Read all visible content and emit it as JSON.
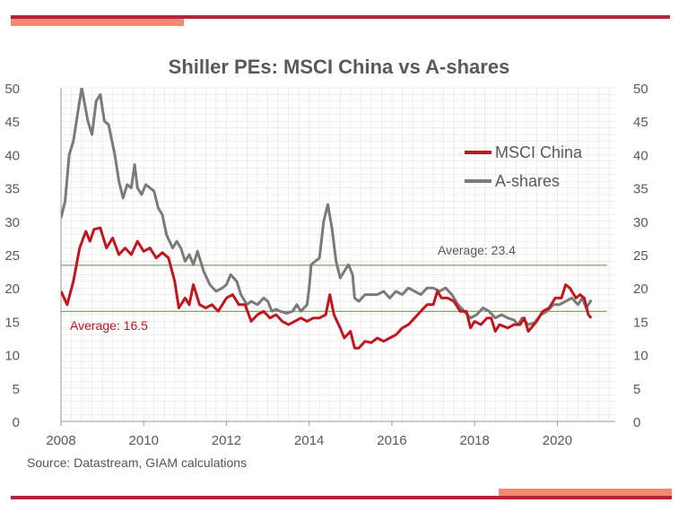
{
  "colors": {
    "accent_dark": "#b3243b",
    "accent_light": "#f08a73",
    "msci": "#c0161f",
    "ashares": "#7a7a7a",
    "average_line": "#5f8a4a",
    "grid": "#e2e2e2"
  },
  "source": "Source: Datastream, GIAM calculations",
  "chart_data": {
    "type": "line",
    "title": "Shiller PEs: MSCI China vs A-shares",
    "xlabel": "",
    "ylabel": "",
    "xlim": [
      2008,
      2021.4
    ],
    "ylim": [
      0,
      50
    ],
    "x_ticks": [
      "2008",
      "2010",
      "2012",
      "2014",
      "2016",
      "2018",
      "2020"
    ],
    "y_ticks": [
      "0",
      "5",
      "10",
      "15",
      "20",
      "25",
      "30",
      "35",
      "40",
      "45",
      "50"
    ],
    "grid": true,
    "legend_position": "top-right",
    "averages": [
      {
        "label": "Average: 23.4",
        "value": 23.4
      },
      {
        "label": "Average: 16.5",
        "value": 16.5
      }
    ],
    "series": [
      {
        "name": "MSCI China",
        "points": [
          [
            2008.0,
            19.5
          ],
          [
            2008.15,
            17.5
          ],
          [
            2008.3,
            21
          ],
          [
            2008.45,
            26
          ],
          [
            2008.6,
            28.5
          ],
          [
            2008.7,
            27
          ],
          [
            2008.8,
            28.8
          ],
          [
            2008.95,
            29
          ],
          [
            2009.1,
            26
          ],
          [
            2009.25,
            27.5
          ],
          [
            2009.4,
            25
          ],
          [
            2009.55,
            26
          ],
          [
            2009.7,
            25
          ],
          [
            2009.85,
            27
          ],
          [
            2010.0,
            25.5
          ],
          [
            2010.15,
            26
          ],
          [
            2010.3,
            24.5
          ],
          [
            2010.45,
            25.3
          ],
          [
            2010.6,
            24.5
          ],
          [
            2010.75,
            21
          ],
          [
            2010.85,
            17
          ],
          [
            2011.0,
            18.5
          ],
          [
            2011.1,
            17.5
          ],
          [
            2011.2,
            20.5
          ],
          [
            2011.35,
            17.5
          ],
          [
            2011.5,
            17
          ],
          [
            2011.65,
            17.5
          ],
          [
            2011.8,
            16.5
          ],
          [
            2012.0,
            18.5
          ],
          [
            2012.15,
            19
          ],
          [
            2012.3,
            17.5
          ],
          [
            2012.45,
            17.5
          ],
          [
            2012.6,
            15
          ],
          [
            2012.75,
            16
          ],
          [
            2012.9,
            16.5
          ],
          [
            2013.05,
            15.5
          ],
          [
            2013.2,
            16
          ],
          [
            2013.35,
            15
          ],
          [
            2013.5,
            14.5
          ],
          [
            2013.65,
            15
          ],
          [
            2013.8,
            15.5
          ],
          [
            2013.95,
            15
          ],
          [
            2014.1,
            15.5
          ],
          [
            2014.25,
            15.5
          ],
          [
            2014.4,
            16
          ],
          [
            2014.5,
            19
          ],
          [
            2014.6,
            16
          ],
          [
            2014.75,
            14
          ],
          [
            2014.85,
            12.5
          ],
          [
            2015.0,
            13.5
          ],
          [
            2015.1,
            11
          ],
          [
            2015.2,
            11
          ],
          [
            2015.35,
            12
          ],
          [
            2015.5,
            11.8
          ],
          [
            2015.65,
            12.5
          ],
          [
            2015.8,
            12
          ],
          [
            2015.95,
            12.5
          ],
          [
            2016.1,
            13
          ],
          [
            2016.25,
            14
          ],
          [
            2016.4,
            14.5
          ],
          [
            2016.55,
            15.5
          ],
          [
            2016.7,
            16.5
          ],
          [
            2016.85,
            17.5
          ],
          [
            2017.0,
            17.5
          ],
          [
            2017.1,
            19.5
          ],
          [
            2017.2,
            18.5
          ],
          [
            2017.35,
            18.5
          ],
          [
            2017.5,
            18
          ],
          [
            2017.65,
            16.5
          ],
          [
            2017.8,
            16.5
          ],
          [
            2017.9,
            14
          ],
          [
            2018.0,
            15
          ],
          [
            2018.15,
            14.5
          ],
          [
            2018.3,
            15.5
          ],
          [
            2018.4,
            15.5
          ],
          [
            2018.5,
            13.5
          ],
          [
            2018.6,
            14.5
          ],
          [
            2018.8,
            14
          ],
          [
            2018.95,
            14.5
          ],
          [
            2019.1,
            14.5
          ],
          [
            2019.2,
            15.5
          ],
          [
            2019.3,
            13.5
          ],
          [
            2019.5,
            15
          ],
          [
            2019.65,
            16.5
          ],
          [
            2019.8,
            17
          ],
          [
            2019.95,
            18.5
          ],
          [
            2020.1,
            18.5
          ],
          [
            2020.2,
            20.5
          ],
          [
            2020.3,
            20
          ],
          [
            2020.45,
            18.5
          ],
          [
            2020.55,
            19
          ],
          [
            2020.65,
            18.5
          ],
          [
            2020.75,
            16
          ],
          [
            2020.82,
            15.5
          ]
        ]
      },
      {
        "name": "A-shares",
        "points": [
          [
            2008.0,
            30.5
          ],
          [
            2008.1,
            33
          ],
          [
            2008.2,
            40
          ],
          [
            2008.3,
            42
          ],
          [
            2008.4,
            46
          ],
          [
            2008.5,
            50
          ],
          [
            2008.65,
            45
          ],
          [
            2008.75,
            43
          ],
          [
            2008.85,
            48
          ],
          [
            2008.95,
            49
          ],
          [
            2009.05,
            45
          ],
          [
            2009.15,
            44.5
          ],
          [
            2009.3,
            40
          ],
          [
            2009.4,
            36
          ],
          [
            2009.5,
            33.5
          ],
          [
            2009.6,
            35.5
          ],
          [
            2009.7,
            35
          ],
          [
            2009.78,
            38.5
          ],
          [
            2009.85,
            35
          ],
          [
            2009.95,
            34
          ],
          [
            2010.05,
            35.5
          ],
          [
            2010.15,
            35
          ],
          [
            2010.25,
            34.5
          ],
          [
            2010.35,
            32
          ],
          [
            2010.45,
            31
          ],
          [
            2010.55,
            28
          ],
          [
            2010.7,
            26
          ],
          [
            2010.8,
            27
          ],
          [
            2010.9,
            26
          ],
          [
            2011.0,
            24
          ],
          [
            2011.1,
            25
          ],
          [
            2011.2,
            23.5
          ],
          [
            2011.3,
            25.5
          ],
          [
            2011.45,
            22.5
          ],
          [
            2011.6,
            20.5
          ],
          [
            2011.75,
            19.5
          ],
          [
            2011.9,
            20
          ],
          [
            2012.0,
            20.5
          ],
          [
            2012.1,
            22
          ],
          [
            2012.25,
            21
          ],
          [
            2012.35,
            19
          ],
          [
            2012.5,
            17.5
          ],
          [
            2012.6,
            18
          ],
          [
            2012.75,
            17.5
          ],
          [
            2012.9,
            18.5
          ],
          [
            2013.0,
            18
          ],
          [
            2013.1,
            16.5
          ],
          [
            2013.2,
            16.8
          ],
          [
            2013.3,
            16.5
          ],
          [
            2013.45,
            16.2
          ],
          [
            2013.6,
            16.5
          ],
          [
            2013.7,
            17.5
          ],
          [
            2013.8,
            16.5
          ],
          [
            2013.95,
            17.5
          ],
          [
            2014.0,
            20
          ],
          [
            2014.05,
            23.5
          ],
          [
            2014.15,
            24
          ],
          [
            2014.25,
            24.5
          ],
          [
            2014.35,
            30
          ],
          [
            2014.45,
            32.5
          ],
          [
            2014.55,
            29
          ],
          [
            2014.65,
            24
          ],
          [
            2014.75,
            21.5
          ],
          [
            2014.85,
            22.5
          ],
          [
            2014.95,
            23.5
          ],
          [
            2015.05,
            22
          ],
          [
            2015.1,
            18.5
          ],
          [
            2015.2,
            18
          ],
          [
            2015.35,
            19
          ],
          [
            2015.5,
            19
          ],
          [
            2015.65,
            19
          ],
          [
            2015.8,
            19.5
          ],
          [
            2015.95,
            18.5
          ],
          [
            2016.1,
            19.5
          ],
          [
            2016.25,
            19
          ],
          [
            2016.4,
            20
          ],
          [
            2016.55,
            19.5
          ],
          [
            2016.7,
            19
          ],
          [
            2016.85,
            20
          ],
          [
            2017.0,
            20
          ],
          [
            2017.15,
            19.5
          ],
          [
            2017.3,
            20
          ],
          [
            2017.45,
            19
          ],
          [
            2017.6,
            17.5
          ],
          [
            2017.75,
            16.5
          ],
          [
            2017.9,
            15.5
          ],
          [
            2018.05,
            16
          ],
          [
            2018.2,
            17
          ],
          [
            2018.35,
            16.5
          ],
          [
            2018.5,
            15.5
          ],
          [
            2018.65,
            16
          ],
          [
            2018.8,
            15.5
          ],
          [
            2018.95,
            15.2
          ],
          [
            2019.05,
            14.5
          ],
          [
            2019.15,
            15.5
          ],
          [
            2019.3,
            14.5
          ],
          [
            2019.45,
            14.8
          ],
          [
            2019.6,
            16
          ],
          [
            2019.75,
            16.5
          ],
          [
            2019.9,
            17.5
          ],
          [
            2020.05,
            17.5
          ],
          [
            2020.2,
            18
          ],
          [
            2020.35,
            18.5
          ],
          [
            2020.5,
            17.5
          ],
          [
            2020.6,
            18.5
          ],
          [
            2020.7,
            17
          ],
          [
            2020.82,
            18.2
          ]
        ]
      }
    ]
  }
}
